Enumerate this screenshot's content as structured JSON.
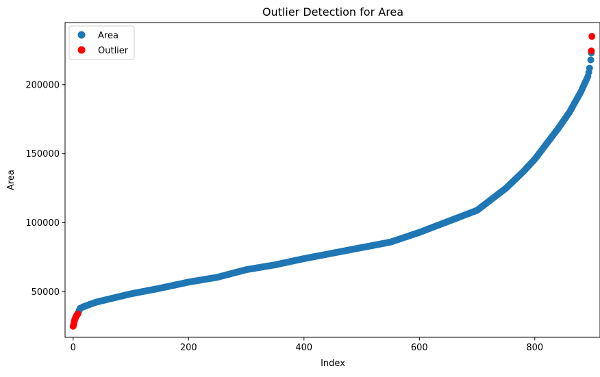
{
  "chart_data": {
    "type": "scatter",
    "title": "Outlier Detection for Area",
    "xlabel": "Index",
    "ylabel": "Area",
    "xlim": [
      -14,
      913
    ],
    "ylim": [
      17000,
      245000
    ],
    "xticks": [
      0,
      200,
      400,
      600,
      800
    ],
    "yticks": [
      50000,
      100000,
      150000,
      200000
    ],
    "xtick_labels": [
      "0",
      "200",
      "400",
      "600",
      "800"
    ],
    "ytick_labels": [
      "50000",
      "100000",
      "150000",
      "200000"
    ],
    "grid": false,
    "legend": {
      "location": "upper left",
      "entries": [
        "Area",
        "Outlier"
      ]
    },
    "series": [
      {
        "name": "Area",
        "color": "#1f77b4",
        "note": "sorted ascending, 900 points traced along the curve",
        "curve": [
          [
            9,
            35000
          ],
          [
            12,
            38000
          ],
          [
            20,
            39500
          ],
          [
            40,
            42500
          ],
          [
            60,
            44500
          ],
          [
            100,
            48500
          ],
          [
            150,
            52500
          ],
          [
            200,
            57000
          ],
          [
            250,
            60500
          ],
          [
            300,
            66000
          ],
          [
            350,
            69500
          ],
          [
            400,
            74000
          ],
          [
            450,
            78000
          ],
          [
            500,
            82000
          ],
          [
            550,
            86000
          ],
          [
            600,
            93000
          ],
          [
            650,
            101000
          ],
          [
            700,
            109000
          ],
          [
            750,
            125000
          ],
          [
            780,
            137000
          ],
          [
            800,
            146000
          ],
          [
            820,
            157000
          ],
          [
            840,
            168000
          ],
          [
            860,
            180000
          ],
          [
            880,
            195000
          ],
          [
            892,
            206000
          ],
          [
            895,
            212000
          ],
          [
            897,
            218000
          ],
          [
            898,
            223000
          ]
        ]
      },
      {
        "name": "Outlier",
        "color": "#ff0000",
        "points": [
          [
            0,
            25000
          ],
          [
            1,
            26500
          ],
          [
            2,
            28500
          ],
          [
            3,
            30000
          ],
          [
            4,
            31000
          ],
          [
            5,
            32000
          ],
          [
            6,
            32800
          ],
          [
            7,
            33300
          ],
          [
            8,
            33900
          ],
          [
            898,
            224500
          ],
          [
            899,
            235000
          ]
        ]
      }
    ]
  }
}
